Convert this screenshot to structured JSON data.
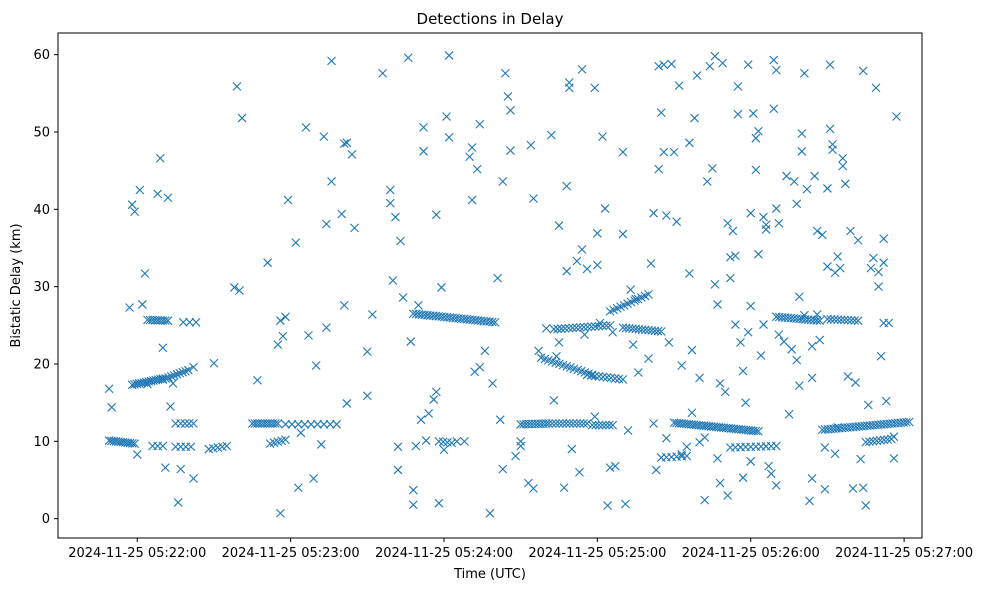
{
  "chart_data": {
    "type": "scatter",
    "title": "Detections in Delay",
    "xlabel": "Time (UTC)",
    "ylabel": "Bistatic Delay (km)",
    "marker": "x",
    "color": "#1f77b4",
    "grid": false,
    "xlim_seconds": [
      -31,
      307
    ],
    "ylim": [
      -2.5,
      62.8
    ],
    "x_ticks": [
      {
        "t": 0,
        "label": "2024-11-25 05:22:00"
      },
      {
        "t": 60,
        "label": "2024-11-25 05:23:00"
      },
      {
        "t": 120,
        "label": "2024-11-25 05:24:00"
      },
      {
        "t": 180,
        "label": "2024-11-25 05:25:00"
      },
      {
        "t": 240,
        "label": "2024-11-25 05:26:00"
      },
      {
        "t": 300,
        "label": "2024-11-25 05:27:00"
      }
    ],
    "y_ticks": [
      0,
      10,
      20,
      30,
      40,
      50,
      60
    ],
    "x_units": "seconds relative to 2024-11-25 05:22:00 UTC",
    "tracks": [
      {
        "t_start": -11,
        "t_end": -1,
        "y_start": 10.1,
        "y_end": 9.7,
        "count": 12
      },
      {
        "t_start": -2,
        "t_end": 10,
        "y_start": 17.3,
        "y_end": 18.1,
        "count": 14
      },
      {
        "t_start": 10,
        "t_end": 20,
        "y_start": 18.0,
        "y_end": 19.2,
        "count": 10
      },
      {
        "t_start": 4,
        "t_end": 12,
        "y_start": 25.7,
        "y_end": 25.6,
        "count": 9
      },
      {
        "t_start": 18,
        "t_end": 23,
        "y_start": 25.4,
        "y_end": 25.4,
        "count": 3
      },
      {
        "t_start": 17,
        "t_end": 22,
        "y_start": 12.3,
        "y_end": 12.3,
        "count": 4
      },
      {
        "t_start": 6,
        "t_end": 10,
        "y_start": 9.4,
        "y_end": 9.4,
        "count": 3
      },
      {
        "t_start": 15,
        "t_end": 21,
        "y_start": 9.3,
        "y_end": 9.3,
        "count": 4
      },
      {
        "t_start": 28,
        "t_end": 35,
        "y_start": 9.0,
        "y_end": 9.4,
        "count": 5
      },
      {
        "t_start": 45,
        "t_end": 55,
        "y_start": 12.3,
        "y_end": 12.3,
        "count": 11
      },
      {
        "t_start": 52,
        "t_end": 58,
        "y_start": 9.7,
        "y_end": 10.2,
        "count": 5
      },
      {
        "t_start": 58,
        "t_end": 78,
        "y_start": 12.2,
        "y_end": 12.2,
        "count": 9
      },
      {
        "t_start": 108,
        "t_end": 140,
        "y_start": 26.5,
        "y_end": 25.4,
        "count": 30
      },
      {
        "t_start": 118,
        "t_end": 123,
        "y_start": 10.0,
        "y_end": 9.8,
        "count": 4
      },
      {
        "t_start": 158,
        "t_end": 178,
        "y_start": 20.8,
        "y_end": 18.6,
        "count": 15
      },
      {
        "t_start": 150,
        "t_end": 160,
        "y_start": 12.2,
        "y_end": 12.3,
        "count": 10
      },
      {
        "t_start": 161,
        "t_end": 176,
        "y_start": 12.3,
        "y_end": 12.3,
        "count": 12
      },
      {
        "t_start": 163,
        "t_end": 185,
        "y_start": 24.5,
        "y_end": 25.0,
        "count": 16
      },
      {
        "t_start": 176,
        "t_end": 190,
        "y_start": 18.6,
        "y_end": 18.0,
        "count": 10
      },
      {
        "t_start": 178,
        "t_end": 186,
        "y_start": 12.1,
        "y_end": 12.1,
        "count": 7
      },
      {
        "t_start": 185,
        "t_end": 200,
        "y_start": 26.8,
        "y_end": 29.0,
        "count": 12
      },
      {
        "t_start": 190,
        "t_end": 205,
        "y_start": 24.7,
        "y_end": 24.2,
        "count": 13
      },
      {
        "t_start": 205,
        "t_end": 215,
        "y_start": 7.9,
        "y_end": 8.1,
        "count": 6
      },
      {
        "t_start": 210,
        "t_end": 243,
        "y_start": 12.4,
        "y_end": 11.3,
        "count": 35
      },
      {
        "t_start": 232,
        "t_end": 250,
        "y_start": 9.2,
        "y_end": 9.4,
        "count": 10
      },
      {
        "t_start": 250,
        "t_end": 267,
        "y_start": 26.1,
        "y_end": 25.6,
        "count": 16
      },
      {
        "t_start": 270,
        "t_end": 282,
        "y_start": 25.8,
        "y_end": 25.6,
        "count": 10
      },
      {
        "t_start": 268,
        "t_end": 302,
        "y_start": 11.5,
        "y_end": 12.5,
        "count": 32
      },
      {
        "t_start": 285,
        "t_end": 295,
        "y_start": 9.9,
        "y_end": 10.3,
        "count": 8
      },
      {
        "t_start": 292,
        "t_end": 294,
        "y_start": 25.3,
        "y_end": 25.3,
        "count": 2
      }
    ],
    "points": [
      [
        -11,
        16.8
      ],
      [
        -10,
        14.4
      ],
      [
        -3,
        27.3
      ],
      [
        -2,
        40.6
      ],
      [
        -1,
        39.7
      ],
      [
        0,
        8.3
      ],
      [
        1,
        42.5
      ],
      [
        2,
        27.7
      ],
      [
        3,
        31.7
      ],
      [
        4,
        17.4
      ],
      [
        8,
        42.0
      ],
      [
        9,
        46.6
      ],
      [
        10,
        22.1
      ],
      [
        11,
        6.6
      ],
      [
        12,
        41.5
      ],
      [
        13,
        14.5
      ],
      [
        14,
        17.5
      ],
      [
        15,
        12.3
      ],
      [
        16,
        2.1
      ],
      [
        17,
        6.4
      ],
      [
        22,
        5.2
      ],
      [
        22,
        19.6
      ],
      [
        30,
        20.1
      ],
      [
        38,
        29.9
      ],
      [
        39,
        55.9
      ],
      [
        40,
        29.5
      ],
      [
        41,
        51.8
      ],
      [
        47,
        17.9
      ],
      [
        51,
        33.1
      ],
      [
        55,
        22.5
      ],
      [
        56,
        0.7
      ],
      [
        56,
        25.6
      ],
      [
        57,
        23.6
      ],
      [
        58,
        26.1
      ],
      [
        59,
        41.2
      ],
      [
        62,
        35.7
      ],
      [
        63,
        4.0
      ],
      [
        64,
        11.1
      ],
      [
        66,
        50.6
      ],
      [
        67,
        23.7
      ],
      [
        69,
        5.2
      ],
      [
        70,
        19.8
      ],
      [
        72,
        9.6
      ],
      [
        73,
        49.4
      ],
      [
        74,
        24.7
      ],
      [
        74,
        38.1
      ],
      [
        76,
        43.6
      ],
      [
        76,
        59.2
      ],
      [
        80,
        39.4
      ],
      [
        81,
        48.5
      ],
      [
        81,
        27.6
      ],
      [
        82,
        48.6
      ],
      [
        82,
        14.9
      ],
      [
        84,
        47.1
      ],
      [
        85,
        37.6
      ],
      [
        90,
        15.9
      ],
      [
        90,
        21.6
      ],
      [
        92,
        26.4
      ],
      [
        96,
        57.6
      ],
      [
        99,
        42.5
      ],
      [
        99,
        40.8
      ],
      [
        100,
        30.8
      ],
      [
        101,
        39.0
      ],
      [
        102,
        9.3
      ],
      [
        102,
        6.3
      ],
      [
        103,
        35.9
      ],
      [
        104,
        28.6
      ],
      [
        106,
        59.6
      ],
      [
        107,
        22.9
      ],
      [
        108,
        3.7
      ],
      [
        108,
        1.8
      ],
      [
        109,
        9.4
      ],
      [
        110,
        27.6
      ],
      [
        111,
        12.8
      ],
      [
        112,
        50.6
      ],
      [
        112,
        47.5
      ],
      [
        113,
        10.1
      ],
      [
        114,
        13.6
      ],
      [
        116,
        15.4
      ],
      [
        117,
        16.4
      ],
      [
        117,
        39.3
      ],
      [
        118,
        2.0
      ],
      [
        119,
        29.9
      ],
      [
        120,
        8.9
      ],
      [
        121,
        52.0
      ],
      [
        122,
        49.3
      ],
      [
        122,
        59.9
      ],
      [
        125,
        10.0
      ],
      [
        128,
        10.0
      ],
      [
        130,
        46.8
      ],
      [
        131,
        41.2
      ],
      [
        131,
        48.0
      ],
      [
        132,
        19.0
      ],
      [
        133,
        45.2
      ],
      [
        134,
        51.0
      ],
      [
        134,
        19.6
      ],
      [
        136,
        21.7
      ],
      [
        138,
        0.7
      ],
      [
        139,
        17.5
      ],
      [
        141,
        31.1
      ],
      [
        142,
        12.8
      ],
      [
        143,
        6.4
      ],
      [
        143,
        43.6
      ],
      [
        144,
        57.6
      ],
      [
        145,
        54.6
      ],
      [
        146,
        52.8
      ],
      [
        146,
        47.6
      ],
      [
        148,
        8.1
      ],
      [
        150,
        10.0
      ],
      [
        150,
        9.4
      ],
      [
        153,
        4.6
      ],
      [
        154,
        48.3
      ],
      [
        155,
        3.9
      ],
      [
        155,
        41.4
      ],
      [
        157,
        21.7
      ],
      [
        160,
        24.6
      ],
      [
        162,
        49.6
      ],
      [
        163,
        15.3
      ],
      [
        164,
        21.0
      ],
      [
        165,
        22.8
      ],
      [
        165,
        37.9
      ],
      [
        167,
        4.0
      ],
      [
        168,
        43.0
      ],
      [
        168,
        32.0
      ],
      [
        169,
        56.4
      ],
      [
        169,
        55.7
      ],
      [
        170,
        9.0
      ],
      [
        172,
        33.3
      ],
      [
        173,
        6.0
      ],
      [
        174,
        34.8
      ],
      [
        174,
        58.1
      ],
      [
        175,
        23.8
      ],
      [
        176,
        32.3
      ],
      [
        179,
        55.7
      ],
      [
        179,
        13.2
      ],
      [
        180,
        36.9
      ],
      [
        180,
        32.8
      ],
      [
        181,
        25.3
      ],
      [
        182,
        49.4
      ],
      [
        183,
        40.1
      ],
      [
        184,
        1.7
      ],
      [
        185,
        6.6
      ],
      [
        186,
        24.1
      ],
      [
        187,
        6.8
      ],
      [
        190,
        47.4
      ],
      [
        190,
        36.8
      ],
      [
        191,
        1.9
      ],
      [
        192,
        11.4
      ],
      [
        193,
        29.6
      ],
      [
        194,
        22.5
      ],
      [
        195,
        28.4
      ],
      [
        196,
        18.9
      ],
      [
        200,
        20.7
      ],
      [
        201,
        33.0
      ],
      [
        202,
        12.3
      ],
      [
        202,
        39.5
      ],
      [
        203,
        6.3
      ],
      [
        204,
        58.5
      ],
      [
        204,
        45.2
      ],
      [
        205,
        52.5
      ],
      [
        206,
        47.4
      ],
      [
        206,
        58.7
      ],
      [
        207,
        39.2
      ],
      [
        207,
        10.4
      ],
      [
        208,
        22.8
      ],
      [
        209,
        58.8
      ],
      [
        210,
        47.4
      ],
      [
        211,
        38.4
      ],
      [
        212,
        56.0
      ],
      [
        213,
        8.3
      ],
      [
        213,
        19.8
      ],
      [
        215,
        9.3
      ],
      [
        216,
        48.6
      ],
      [
        216,
        31.7
      ],
      [
        217,
        21.8
      ],
      [
        217,
        13.7
      ],
      [
        218,
        51.8
      ],
      [
        219,
        57.3
      ],
      [
        220,
        9.9
      ],
      [
        220,
        18.2
      ],
      [
        222,
        2.4
      ],
      [
        222,
        10.5
      ],
      [
        223,
        43.6
      ],
      [
        224,
        58.5
      ],
      [
        225,
        45.3
      ],
      [
        226,
        59.8
      ],
      [
        226,
        30.3
      ],
      [
        227,
        7.8
      ],
      [
        227,
        27.7
      ],
      [
        228,
        4.6
      ],
      [
        228,
        17.5
      ],
      [
        229,
        58.9
      ],
      [
        230,
        16.4
      ],
      [
        231,
        3.0
      ],
      [
        231,
        38.2
      ],
      [
        232,
        33.8
      ],
      [
        232,
        31.1
      ],
      [
        233,
        37.2
      ],
      [
        234,
        34.0
      ],
      [
        234,
        25.1
      ],
      [
        235,
        55.9
      ],
      [
        235,
        52.3
      ],
      [
        236,
        22.8
      ],
      [
        237,
        19.1
      ],
      [
        237,
        5.3
      ],
      [
        238,
        15.0
      ],
      [
        239,
        58.7
      ],
      [
        239,
        24.1
      ],
      [
        240,
        27.5
      ],
      [
        240,
        39.5
      ],
      [
        240,
        7.4
      ],
      [
        241,
        52.4
      ],
      [
        242,
        49.2
      ],
      [
        242,
        45.1
      ],
      [
        243,
        50.1
      ],
      [
        243,
        34.2
      ],
      [
        244,
        21.1
      ],
      [
        245,
        25.1
      ],
      [
        245,
        39.0
      ],
      [
        246,
        38.0
      ],
      [
        246,
        37.4
      ],
      [
        247,
        6.8
      ],
      [
        248,
        5.8
      ],
      [
        249,
        59.3
      ],
      [
        249,
        53.0
      ],
      [
        250,
        4.3
      ],
      [
        250,
        58.0
      ],
      [
        250,
        40.1
      ],
      [
        251,
        38.2
      ],
      [
        251,
        23.8
      ],
      [
        253,
        22.9
      ],
      [
        254,
        44.3
      ],
      [
        255,
        13.5
      ],
      [
        256,
        21.9
      ],
      [
        257,
        43.6
      ],
      [
        258,
        20.5
      ],
      [
        258,
        40.7
      ],
      [
        259,
        17.2
      ],
      [
        259,
        28.7
      ],
      [
        260,
        47.5
      ],
      [
        260,
        49.8
      ],
      [
        261,
        57.6
      ],
      [
        261,
        26.3
      ],
      [
        262,
        42.6
      ],
      [
        263,
        2.3
      ],
      [
        264,
        18.2
      ],
      [
        264,
        5.2
      ],
      [
        264,
        22.3
      ],
      [
        265,
        44.3
      ],
      [
        266,
        26.4
      ],
      [
        266,
        37.2
      ],
      [
        267,
        23.1
      ],
      [
        268,
        36.7
      ],
      [
        269,
        9.2
      ],
      [
        269,
        3.8
      ],
      [
        270,
        32.6
      ],
      [
        270,
        42.7
      ],
      [
        271,
        50.4
      ],
      [
        271,
        58.7
      ],
      [
        272,
        47.7
      ],
      [
        272,
        48.4
      ],
      [
        273,
        31.8
      ],
      [
        273,
        8.4
      ],
      [
        274,
        11.8
      ],
      [
        274,
        33.9
      ],
      [
        275,
        32.4
      ],
      [
        276,
        45.6
      ],
      [
        276,
        46.6
      ],
      [
        277,
        43.3
      ],
      [
        278,
        18.4
      ],
      [
        279,
        37.2
      ],
      [
        280,
        3.9
      ],
      [
        281,
        17.6
      ],
      [
        282,
        36.0
      ],
      [
        283,
        7.7
      ],
      [
        284,
        57.9
      ],
      [
        284,
        4.0
      ],
      [
        285,
        1.7
      ],
      [
        286,
        14.7
      ],
      [
        287,
        32.4
      ],
      [
        288,
        33.7
      ],
      [
        289,
        55.7
      ],
      [
        290,
        30.0
      ],
      [
        290,
        31.9
      ],
      [
        291,
        21.0
      ],
      [
        292,
        33.1
      ],
      [
        292,
        36.2
      ],
      [
        293,
        15.2
      ],
      [
        296,
        10.6
      ],
      [
        296,
        7.8
      ],
      [
        297,
        52.0
      ]
    ]
  }
}
